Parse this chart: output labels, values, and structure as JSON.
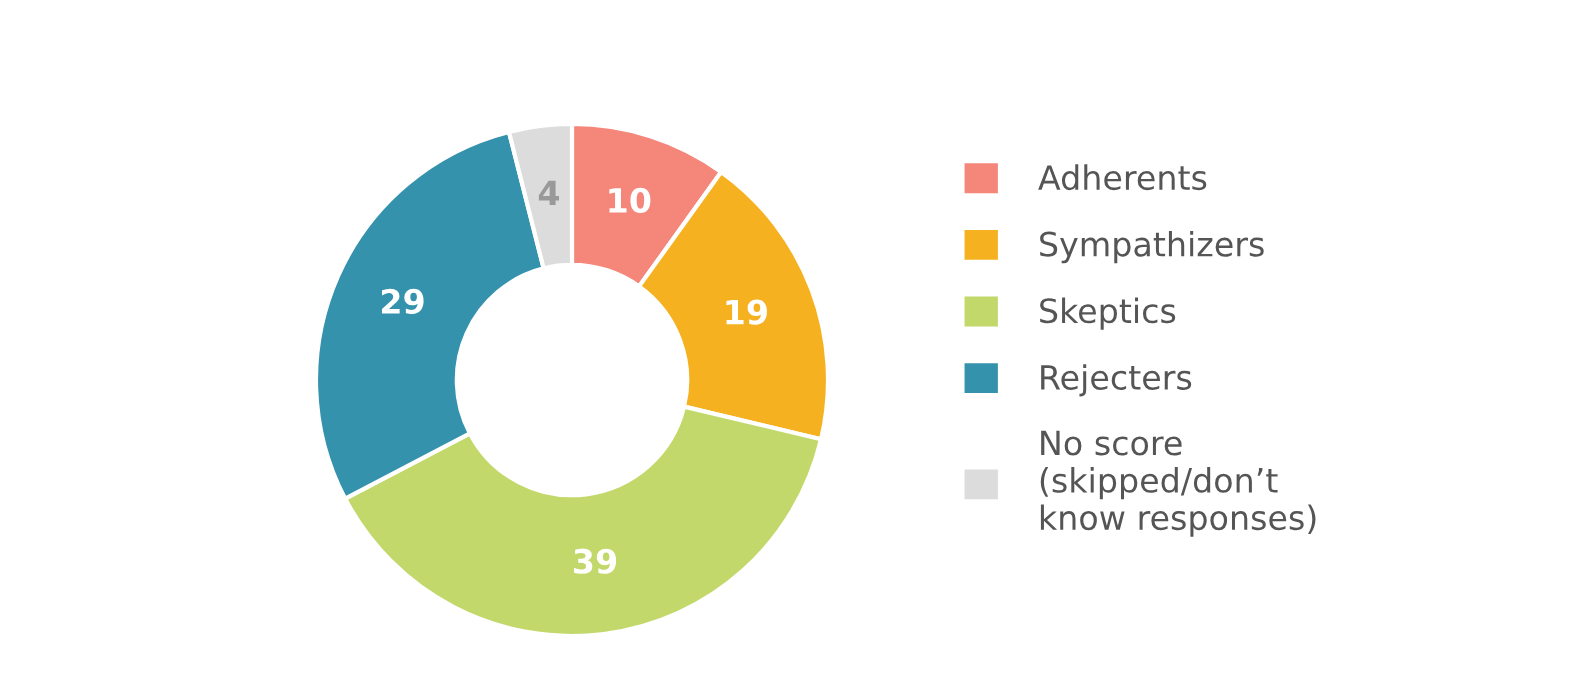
{
  "chart_data": {
    "type": "donut",
    "categories": [
      "Adherents",
      "Sympathizers",
      "Skeptics",
      "Rejecters",
      "No score\n(skipped/don’t\nknow responses)"
    ],
    "values": [
      10,
      19,
      39,
      29,
      4
    ],
    "colors": [
      "#f4877a",
      "#f5b11f",
      "#c2d86a",
      "#3492ad",
      "#dcdcdc"
    ],
    "data_labels": true,
    "legend": "right"
  }
}
